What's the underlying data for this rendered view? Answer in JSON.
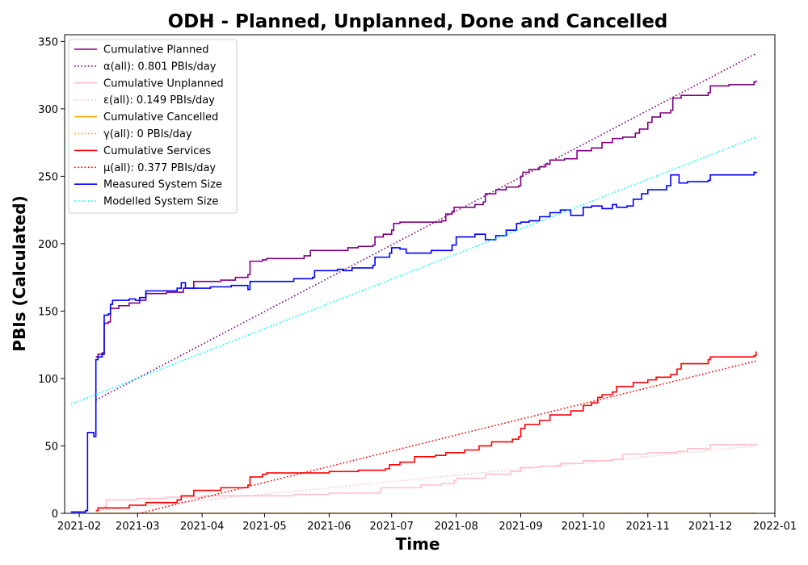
{
  "chart_data": {
    "type": "line",
    "title": "ODH - Planned, Unplanned, Done  and Cancelled",
    "xlabel": "Time",
    "ylabel": "PBIs (Calculated)",
    "x_range": [
      "2021-01-25",
      "2022-01-01"
    ],
    "ylim": [
      0,
      355
    ],
    "x_ticks": [
      "2021-02",
      "2021-03",
      "2021-04",
      "2021-05",
      "2021-06",
      "2021-07",
      "2021-08",
      "2021-09",
      "2021-10",
      "2021-11",
      "2021-12",
      "2022-01"
    ],
    "y_ticks": [
      0,
      50,
      100,
      150,
      200,
      250,
      300,
      350
    ],
    "grid": false,
    "legend_position": "top-left",
    "series": [
      {
        "name": "Cumulative Planned",
        "color": "#800080",
        "style": "solid",
        "points": [
          [
            "2021-02-09",
            116
          ],
          [
            "2021-02-10",
            118
          ],
          [
            "2021-02-12",
            119
          ],
          [
            "2021-02-13",
            141
          ],
          [
            "2021-02-15",
            142
          ],
          [
            "2021-02-16",
            152
          ],
          [
            "2021-02-20",
            154
          ],
          [
            "2021-02-25",
            156
          ],
          [
            "2021-03-02",
            158
          ],
          [
            "2021-03-05",
            163
          ],
          [
            "2021-03-15",
            164
          ],
          [
            "2021-03-23",
            167
          ],
          [
            "2021-03-28",
            172
          ],
          [
            "2021-04-10",
            173
          ],
          [
            "2021-04-17",
            175
          ],
          [
            "2021-04-23",
            177
          ],
          [
            "2021-04-24",
            187
          ],
          [
            "2021-04-30",
            188
          ],
          [
            "2021-05-02",
            189
          ],
          [
            "2021-05-20",
            191
          ],
          [
            "2021-05-23",
            195
          ],
          [
            "2021-06-10",
            197
          ],
          [
            "2021-06-15",
            198
          ],
          [
            "2021-06-22",
            199
          ],
          [
            "2021-06-23",
            205
          ],
          [
            "2021-06-27",
            207
          ],
          [
            "2021-07-01",
            210
          ],
          [
            "2021-07-02",
            215
          ],
          [
            "2021-07-05",
            216
          ],
          [
            "2021-07-25",
            217
          ],
          [
            "2021-07-27",
            222
          ],
          [
            "2021-07-30",
            224
          ],
          [
            "2021-07-31",
            227
          ],
          [
            "2021-08-10",
            229
          ],
          [
            "2021-08-14",
            231
          ],
          [
            "2021-08-15",
            237
          ],
          [
            "2021-08-20",
            240
          ],
          [
            "2021-08-25",
            242
          ],
          [
            "2021-08-31",
            243
          ],
          [
            "2021-09-01",
            250
          ],
          [
            "2021-09-02",
            253
          ],
          [
            "2021-09-05",
            255
          ],
          [
            "2021-09-10",
            257
          ],
          [
            "2021-09-13",
            259
          ],
          [
            "2021-09-15",
            262
          ],
          [
            "2021-09-22",
            263
          ],
          [
            "2021-09-27",
            263
          ],
          [
            "2021-09-28",
            269
          ],
          [
            "2021-10-05",
            271
          ],
          [
            "2021-10-10",
            275
          ],
          [
            "2021-10-15",
            278
          ],
          [
            "2021-10-20",
            279
          ],
          [
            "2021-10-26",
            282
          ],
          [
            "2021-10-28",
            285
          ],
          [
            "2021-11-01",
            290
          ],
          [
            "2021-11-03",
            294
          ],
          [
            "2021-11-07",
            297
          ],
          [
            "2021-11-12",
            299
          ],
          [
            "2021-11-13",
            308
          ],
          [
            "2021-11-17",
            310
          ],
          [
            "2021-11-30",
            312
          ],
          [
            "2021-12-01",
            317
          ],
          [
            "2021-12-10",
            318
          ],
          [
            "2021-12-22",
            320
          ],
          [
            "2021-12-23",
            321
          ]
        ]
      },
      {
        "name": "α(all): 0.801 PBIs/day",
        "color": "#800080",
        "style": "dotted",
        "points": [
          [
            "2021-02-09",
            84
          ],
          [
            "2021-12-23",
            341
          ]
        ]
      },
      {
        "name": "Cumulative Unplanned",
        "color": "#ffc0cb",
        "style": "solid",
        "points": [
          [
            "2021-02-13",
            5
          ],
          [
            "2021-02-14",
            10
          ],
          [
            "2021-03-01",
            11
          ],
          [
            "2021-03-15",
            12
          ],
          [
            "2021-04-01",
            13
          ],
          [
            "2021-04-15",
            13
          ],
          [
            "2021-05-15",
            14
          ],
          [
            "2021-06-01",
            15
          ],
          [
            "2021-06-25",
            16
          ],
          [
            "2021-06-26",
            19
          ],
          [
            "2021-07-15",
            21
          ],
          [
            "2021-07-25",
            22
          ],
          [
            "2021-07-31",
            24
          ],
          [
            "2021-08-01",
            26
          ],
          [
            "2021-08-15",
            29
          ],
          [
            "2021-08-27",
            31
          ],
          [
            "2021-09-01",
            34
          ],
          [
            "2021-09-10",
            35
          ],
          [
            "2021-09-20",
            37
          ],
          [
            "2021-10-01",
            39
          ],
          [
            "2021-10-15",
            40
          ],
          [
            "2021-10-20",
            44
          ],
          [
            "2021-11-01",
            45
          ],
          [
            "2021-11-15",
            46
          ],
          [
            "2021-11-20",
            48
          ],
          [
            "2021-12-01",
            51
          ],
          [
            "2021-12-23",
            52
          ]
        ]
      },
      {
        "name": "ε(all): 0.149 PBIs/day",
        "color": "#ffc0cb",
        "style": "dotted",
        "points": [
          [
            "2021-02-09",
            2
          ],
          [
            "2021-12-23",
            50
          ]
        ]
      },
      {
        "name": "Cumulative Cancelled",
        "color": "#ffa500",
        "style": "solid",
        "points": [
          [
            "2021-02-09",
            0
          ],
          [
            "2021-12-23",
            0
          ]
        ]
      },
      {
        "name": "γ(all): 0 PBIs/day",
        "color": "#ffa500",
        "style": "dotted",
        "points": [
          [
            "2021-02-09",
            0
          ],
          [
            "2021-12-23",
            0
          ]
        ]
      },
      {
        "name": "Cumulative Services",
        "color": "#ff0000",
        "style": "solid",
        "points": [
          [
            "2021-02-09",
            2
          ],
          [
            "2021-02-10",
            4
          ],
          [
            "2021-02-25",
            6
          ],
          [
            "2021-03-05",
            8
          ],
          [
            "2021-03-20",
            10
          ],
          [
            "2021-03-22",
            13
          ],
          [
            "2021-03-28",
            17
          ],
          [
            "2021-04-10",
            19
          ],
          [
            "2021-04-23",
            21
          ],
          [
            "2021-04-24",
            27
          ],
          [
            "2021-04-30",
            29
          ],
          [
            "2021-05-02",
            30
          ],
          [
            "2021-06-01",
            31
          ],
          [
            "2021-06-15",
            32
          ],
          [
            "2021-06-28",
            33
          ],
          [
            "2021-06-30",
            36
          ],
          [
            "2021-07-05",
            38
          ],
          [
            "2021-07-12",
            42
          ],
          [
            "2021-07-22",
            43
          ],
          [
            "2021-07-27",
            45
          ],
          [
            "2021-08-05",
            47
          ],
          [
            "2021-08-12",
            50
          ],
          [
            "2021-08-18",
            53
          ],
          [
            "2021-08-28",
            55
          ],
          [
            "2021-08-31",
            57
          ],
          [
            "2021-09-01",
            63
          ],
          [
            "2021-09-03",
            66
          ],
          [
            "2021-09-10",
            69
          ],
          [
            "2021-09-15",
            73
          ],
          [
            "2021-09-25",
            76
          ],
          [
            "2021-10-01",
            80
          ],
          [
            "2021-10-05",
            82
          ],
          [
            "2021-10-08",
            86
          ],
          [
            "2021-10-10",
            88
          ],
          [
            "2021-10-15",
            90
          ],
          [
            "2021-10-17",
            94
          ],
          [
            "2021-10-25",
            97
          ],
          [
            "2021-11-01",
            99
          ],
          [
            "2021-11-05",
            101
          ],
          [
            "2021-11-12",
            103
          ],
          [
            "2021-11-15",
            107
          ],
          [
            "2021-11-17",
            111
          ],
          [
            "2021-11-30",
            114
          ],
          [
            "2021-12-01",
            116
          ],
          [
            "2021-12-22",
            117
          ],
          [
            "2021-12-23",
            120
          ]
        ]
      },
      {
        "name": "μ(all): 0.377 PBIs/day",
        "color": "#ff0000",
        "style": "dotted",
        "points": [
          [
            "2021-02-09",
            -8
          ],
          [
            "2021-12-23",
            113
          ]
        ]
      },
      {
        "name": "Measured System Size",
        "color": "#0000ff",
        "style": "solid",
        "points": [
          [
            "2021-01-28",
            1
          ],
          [
            "2021-02-04",
            2
          ],
          [
            "2021-02-05",
            60
          ],
          [
            "2021-02-08",
            57
          ],
          [
            "2021-02-09",
            114
          ],
          [
            "2021-02-10",
            116
          ],
          [
            "2021-02-12",
            118
          ],
          [
            "2021-02-13",
            147
          ],
          [
            "2021-02-15",
            148
          ],
          [
            "2021-02-16",
            155
          ],
          [
            "2021-02-17",
            158
          ],
          [
            "2021-02-25",
            159
          ],
          [
            "2021-02-28",
            158
          ],
          [
            "2021-03-02",
            160
          ],
          [
            "2021-03-05",
            165
          ],
          [
            "2021-03-20",
            167
          ],
          [
            "2021-03-22",
            171
          ],
          [
            "2021-03-24",
            167
          ],
          [
            "2021-04-05",
            168
          ],
          [
            "2021-04-15",
            169
          ],
          [
            "2021-04-23",
            166
          ],
          [
            "2021-04-24",
            172
          ],
          [
            "2021-05-01",
            172
          ],
          [
            "2021-05-15",
            174
          ],
          [
            "2021-05-24",
            175
          ],
          [
            "2021-05-25",
            180
          ],
          [
            "2021-06-05",
            181
          ],
          [
            "2021-06-08",
            180
          ],
          [
            "2021-06-12",
            182
          ],
          [
            "2021-06-22",
            184
          ],
          [
            "2021-06-23",
            190
          ],
          [
            "2021-06-30",
            193
          ],
          [
            "2021-07-01",
            197
          ],
          [
            "2021-07-05",
            196
          ],
          [
            "2021-07-08",
            193
          ],
          [
            "2021-07-20",
            195
          ],
          [
            "2021-07-30",
            199
          ],
          [
            "2021-08-01",
            205
          ],
          [
            "2021-08-10",
            207
          ],
          [
            "2021-08-15",
            203
          ],
          [
            "2021-08-20",
            206
          ],
          [
            "2021-08-25",
            210
          ],
          [
            "2021-08-30",
            215
          ],
          [
            "2021-09-01",
            216
          ],
          [
            "2021-09-05",
            217
          ],
          [
            "2021-09-10",
            220
          ],
          [
            "2021-09-15",
            223
          ],
          [
            "2021-09-20",
            225
          ],
          [
            "2021-09-25",
            221
          ],
          [
            "2021-10-01",
            227
          ],
          [
            "2021-10-05",
            228
          ],
          [
            "2021-10-10",
            226
          ],
          [
            "2021-10-15",
            229
          ],
          [
            "2021-10-17",
            227
          ],
          [
            "2021-10-22",
            228
          ],
          [
            "2021-10-25",
            233
          ],
          [
            "2021-10-29",
            237
          ],
          [
            "2021-11-01",
            240
          ],
          [
            "2021-11-10",
            243
          ],
          [
            "2021-11-12",
            251
          ],
          [
            "2021-11-16",
            245
          ],
          [
            "2021-11-20",
            246
          ],
          [
            "2021-11-30",
            247
          ],
          [
            "2021-12-01",
            251
          ],
          [
            "2021-12-22",
            253
          ],
          [
            "2021-12-23",
            252
          ]
        ]
      },
      {
        "name": "Modelled System Size",
        "color": "#00ffff",
        "style": "dotted",
        "points": [
          [
            "2021-01-28",
            81
          ],
          [
            "2021-12-23",
            279
          ]
        ]
      }
    ]
  }
}
